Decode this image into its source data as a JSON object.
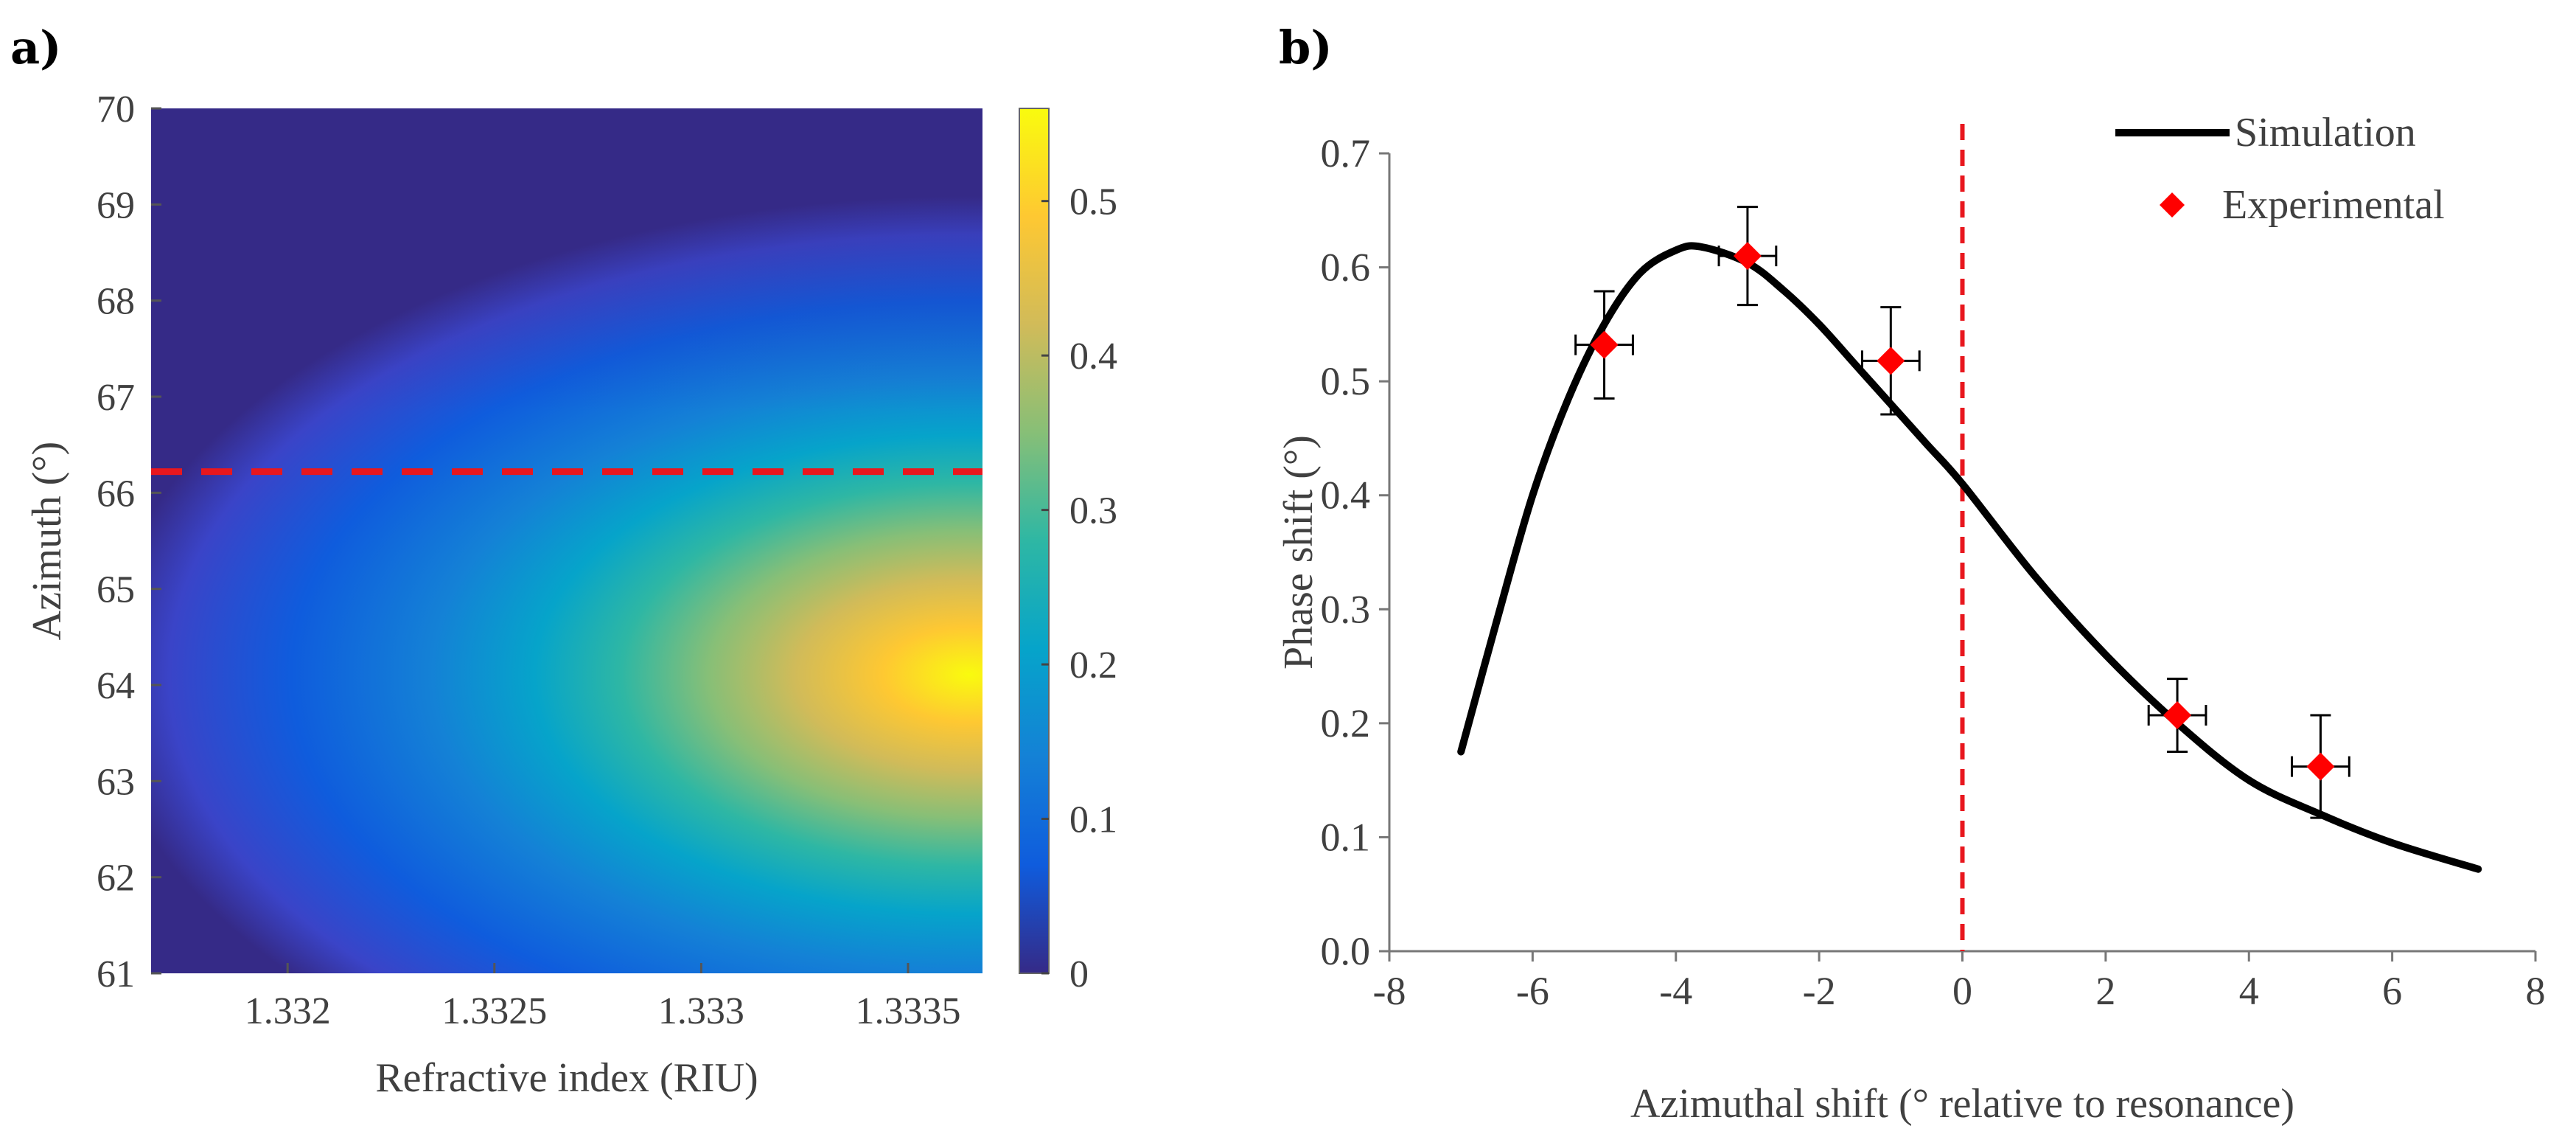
{
  "chart_data": [
    {
      "panel_label": "a)",
      "type": "heatmap",
      "xlabel": "Refractive index (RIU)",
      "ylabel": "Azimuth (°)",
      "xlim": [
        1.33167,
        1.33368
      ],
      "ylim": [
        61,
        70
      ],
      "x_ticks": [
        1.332,
        1.3325,
        1.333,
        1.3335
      ],
      "x_tick_labels": [
        "1.332",
        "1.3325",
        "1.333",
        "1.3335"
      ],
      "y_ticks": [
        61,
        62,
        63,
        64,
        65,
        66,
        67,
        68,
        69,
        70
      ],
      "y_tick_labels": [
        "61",
        "62",
        "63",
        "64",
        "65",
        "66",
        "67",
        "68",
        "69",
        "70"
      ],
      "colorbar": {
        "range": [
          0,
          0.56
        ],
        "ticks": [
          0,
          0.1,
          0.2,
          0.3,
          0.4,
          0.5
        ],
        "tick_labels": [
          "0",
          "0.1",
          "0.2",
          "0.3",
          "0.4",
          "0.5"
        ],
        "colormap": "parula"
      },
      "peak": {
        "x": 1.3336,
        "y": 63.9,
        "value": 0.55
      },
      "reference_line": {
        "axis": "y",
        "value": 66.22,
        "style": "dashed",
        "color": "#e8171e"
      }
    },
    {
      "panel_label": "b)",
      "type": "scatter",
      "xlabel": "Azimuthal shift (° relative to resonance)",
      "ylabel": "Phase shift (°)",
      "xlim": [
        -8,
        8
      ],
      "ylim": [
        0,
        0.7
      ],
      "x_ticks": [
        -8,
        -6,
        -4,
        -2,
        0,
        2,
        4,
        6,
        8
      ],
      "x_tick_labels": [
        "-8",
        "-6",
        "-4",
        "-2",
        "0",
        "2",
        "4",
        "6",
        "8"
      ],
      "y_ticks": [
        0,
        0.1,
        0.2,
        0.3,
        0.4,
        0.5,
        0.6,
        0.7
      ],
      "y_tick_labels": [
        "0.0",
        "0.1",
        "0.2",
        "0.3",
        "0.4",
        "0.5",
        "0.6",
        "0.7"
      ],
      "legend_position": "top-right",
      "series": [
        {
          "name": "Simulation",
          "type": "line",
          "color": "#000000",
          "x": [
            -7.0,
            -6.5,
            -6.0,
            -5.5,
            -5.0,
            -4.5,
            -4.0,
            -3.65,
            -3.0,
            -2.5,
            -2.0,
            -1.5,
            -1.0,
            -0.5,
            0.0,
            1.0,
            2.0,
            3.0,
            4.0,
            5.0,
            6.0,
            7.2
          ],
          "y": [
            0.175,
            0.29,
            0.4,
            0.485,
            0.55,
            0.595,
            0.615,
            0.618,
            0.604,
            0.58,
            0.55,
            0.515,
            0.48,
            0.445,
            0.41,
            0.33,
            0.26,
            0.2,
            0.15,
            0.12,
            0.095,
            0.072
          ]
        },
        {
          "name": "Experimental",
          "type": "scatter",
          "marker": "diamond",
          "color": "#ff0000",
          "x": [
            -5,
            -3,
            -1,
            3,
            5
          ],
          "y": [
            0.532,
            0.61,
            0.518,
            0.207,
            0.162
          ],
          "x_err": [
            0.4,
            0.4,
            0.4,
            0.4,
            0.4
          ],
          "y_err": [
            0.047,
            0.043,
            0.047,
            0.032,
            0.045
          ]
        }
      ],
      "reference_line": {
        "axis": "x",
        "value": 0,
        "style": "dashed",
        "color": "#e8171e"
      }
    }
  ]
}
